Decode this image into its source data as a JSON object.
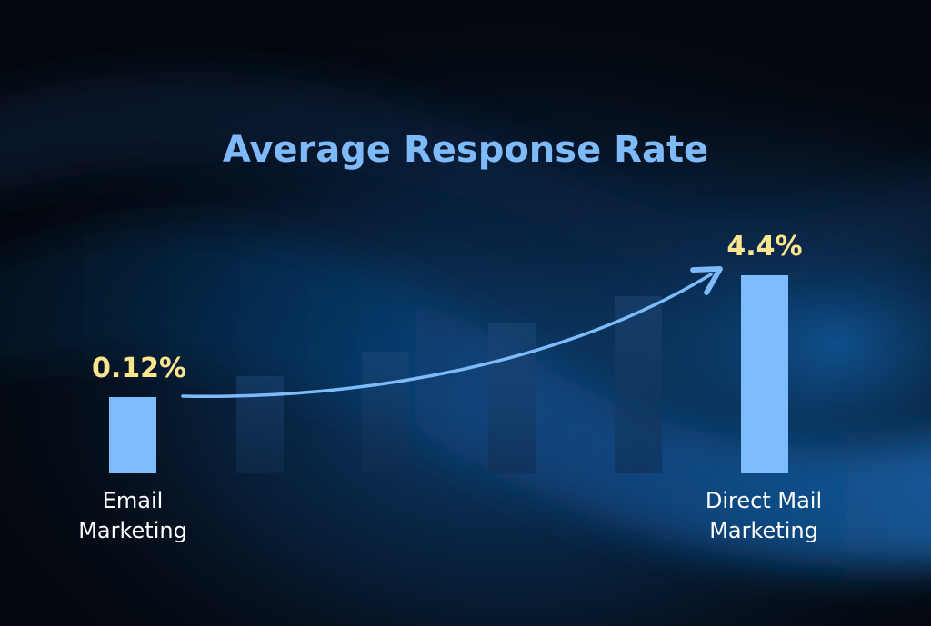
{
  "chart_data": {
    "type": "bar",
    "title": "Average Response Rate",
    "categories": [
      "Email Marketing",
      "Direct Mail Marketing"
    ],
    "values": [
      0.12,
      4.4
    ],
    "value_labels": [
      "0.12%",
      "4.4%"
    ],
    "category_label_lines": [
      [
        "Email",
        "Marketing"
      ],
      [
        "Direct Mail",
        "Marketing"
      ]
    ],
    "unit": "%",
    "decorative_intermediate_bars": 4,
    "trend_arrow": true,
    "grid": false,
    "legend": "none"
  },
  "colors": {
    "background": "#04070d",
    "wave": "#0d4a86",
    "bar": "#7dbcfc",
    "ghost_bar": "#1b3f6b",
    "title": "#7fbaf8",
    "value_label": "#fde58f",
    "category_label": "#ffffff",
    "arrow": "#7dbcfc"
  }
}
